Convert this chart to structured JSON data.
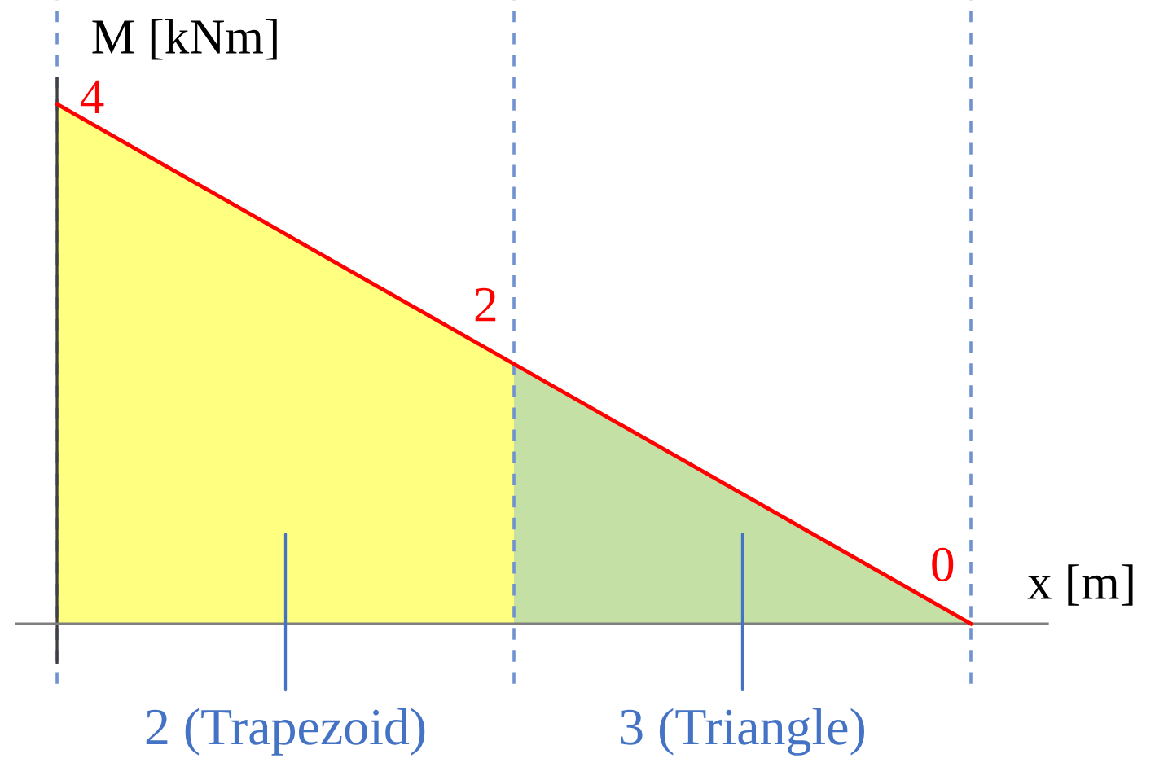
{
  "chart_data": {
    "type": "area",
    "xlabel": "x [m]",
    "ylabel": "M [kNm]",
    "categories": [
      null,
      null,
      null
    ],
    "ylim": [
      -0.3,
      4.2
    ],
    "grid": "x",
    "annotations": [
      "2 (Trapezoid)",
      "3 (Triangle)"
    ],
    "series": [
      {
        "color": "#ffff80",
        "values": [
          4,
          2,
          null
        ]
      },
      {
        "color": "#c5e0a5",
        "values": [
          null,
          2,
          0
        ]
      },
      {
        "type": "line",
        "color": "#ff0000",
        "values": [
          4,
          2,
          0
        ],
        "data_labels": true
      }
    ]
  }
}
